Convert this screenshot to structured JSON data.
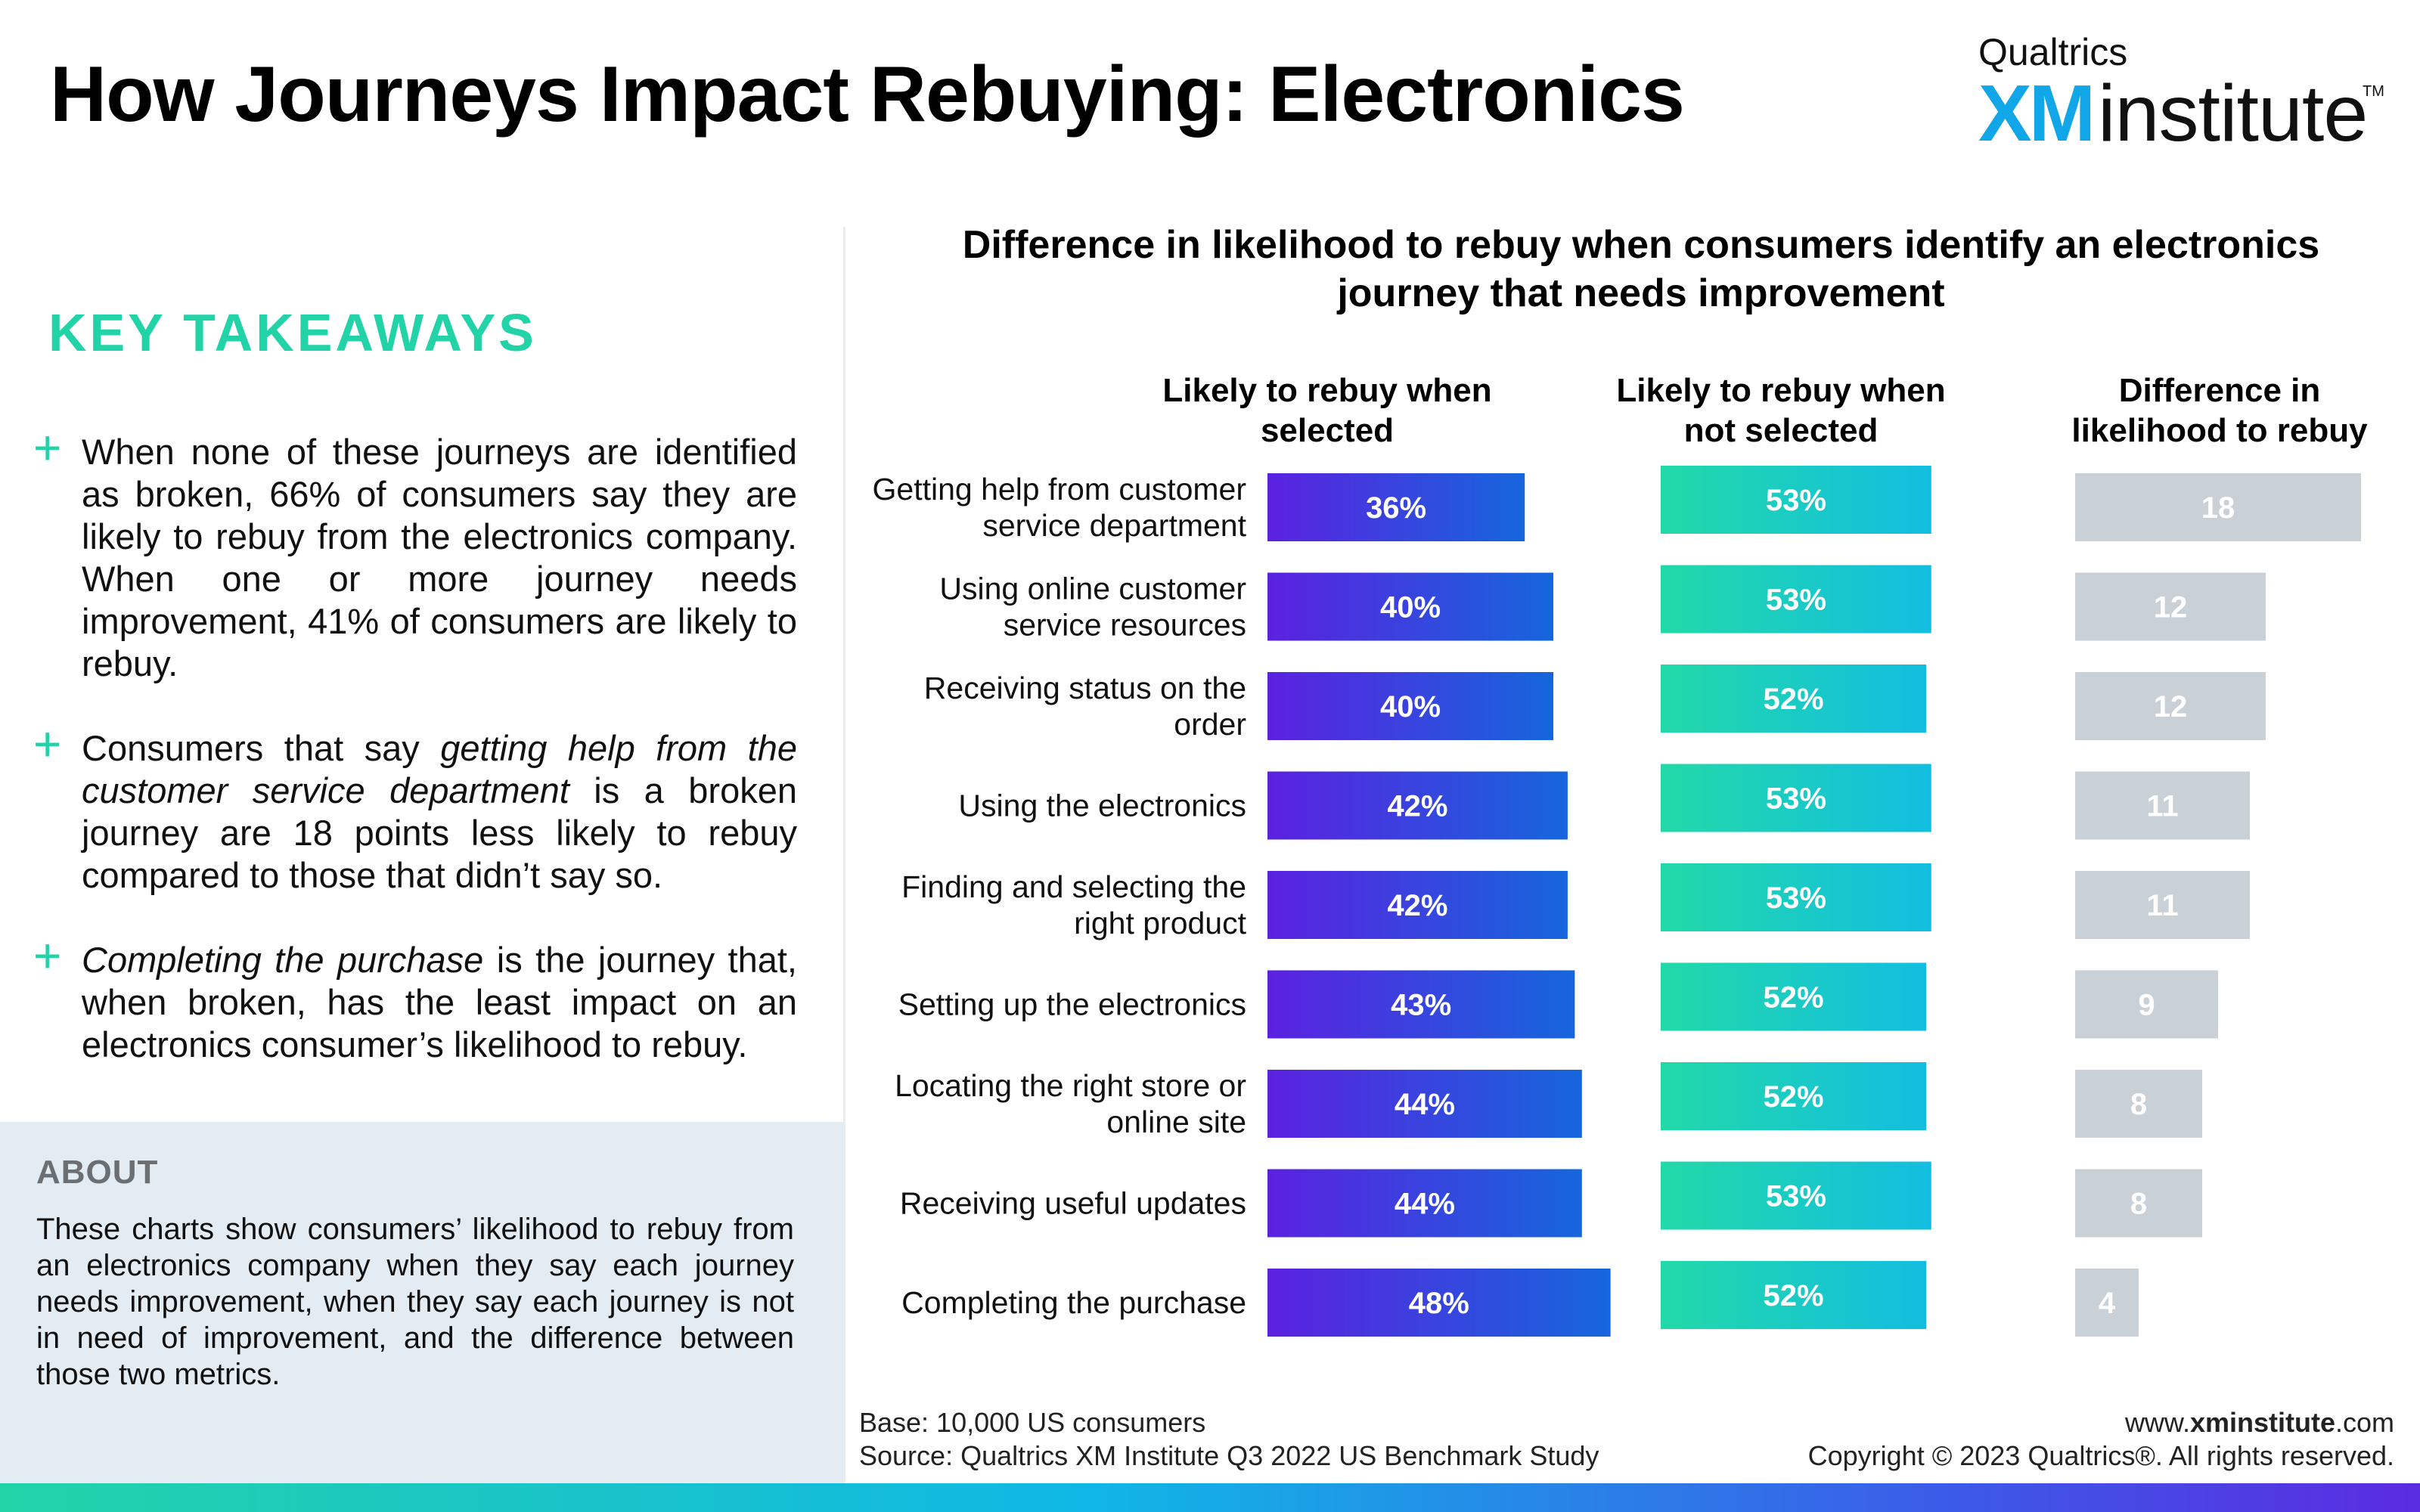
{
  "header": {
    "title": "How Journeys Impact Rebuying: Electronics",
    "logo_brand": "Qualtrics",
    "logo_xm": "XM",
    "logo_institute": "institute",
    "logo_tm": "TM"
  },
  "takeaways": {
    "title": "KEY TAKEAWAYS",
    "plus_glyph": "+",
    "item1": "When none of these journeys are identified as broken, 66% of consumers say they are likely to rebuy from the electronics company. When one or more journey needs improvement, 41% of consumers are likely to rebuy.",
    "item2_pre": "Consumers that say ",
    "item2_em": "getting help from the customer service department",
    "item2_post": " is a broken journey are 18 points less likely to rebuy compared to those that didn’t say so.",
    "item3_em": "Completing the purchase",
    "item3_post": " is the journey that, when broken, has the least impact on an electronics consumer’s likelihood to rebuy."
  },
  "about": {
    "title": "ABOUT",
    "text": "These charts show consumers’ likelihood to rebuy from an electronics company when they say each journey needs improvement, when they say each journey is not in need of improvement, and the difference between those two metrics."
  },
  "footer": {
    "base": "Base: 10,000 US consumers",
    "source": "Source: Qualtrics XM Institute Q3 2022 US Benchmark Study",
    "url_pre": "www.",
    "url_bold": "xminstitute",
    "url_post": ".com",
    "copyright": "Copyright © 2023 Qualtrics®. All rights reserved."
  },
  "chart_data": {
    "type": "bar",
    "orientation": "horizontal",
    "title": "Difference in likelihood to rebuy when consumers identify an electronics journey that needs improvement",
    "categories": [
      [
        "Getting help from customer",
        "service department"
      ],
      [
        "Using online customer",
        "service resources"
      ],
      [
        "Receiving status on the",
        "order"
      ],
      [
        "Using the electronics"
      ],
      [
        "Finding and selecting the",
        "right product"
      ],
      [
        "Setting up the electronics"
      ],
      [
        "Locating the right store or",
        "online site"
      ],
      [
        "Receiving useful updates"
      ],
      [
        "Completing the purchase"
      ]
    ],
    "series": [
      {
        "name": "Likely to rebuy when selected",
        "header": [
          "Likely to rebuy when",
          "selected"
        ],
        "values": [
          36,
          40,
          40,
          42,
          42,
          43,
          44,
          44,
          48
        ],
        "labels": [
          "36%",
          "40%",
          "40%",
          "42%",
          "42%",
          "43%",
          "44%",
          "44%",
          "48%"
        ],
        "colors": [
          "#5b21e0",
          "#1566dc"
        ]
      },
      {
        "name": "Likely to rebuy when not selected",
        "header": [
          "Likely to rebuy when",
          "not selected"
        ],
        "values": [
          53,
          53,
          52,
          53,
          53,
          52,
          52,
          53,
          52
        ],
        "labels": [
          "53%",
          "53%",
          "52%",
          "53%",
          "53%",
          "52%",
          "52%",
          "53%",
          "52%"
        ],
        "colors": [
          "#22d9a8",
          "#13bde0"
        ]
      },
      {
        "name": "Difference in likelihood to rebuy",
        "header": [
          "Difference in",
          "likelihood to rebuy"
        ],
        "values": [
          18,
          12,
          12,
          11,
          11,
          9,
          8,
          8,
          4
        ],
        "labels": [
          "18",
          "12",
          "12",
          "11",
          "11",
          "9",
          "8",
          "8",
          "4"
        ],
        "colors": [
          "#c9d1d7",
          "#c9d1d7"
        ]
      }
    ],
    "grid": false,
    "legend": "none"
  }
}
